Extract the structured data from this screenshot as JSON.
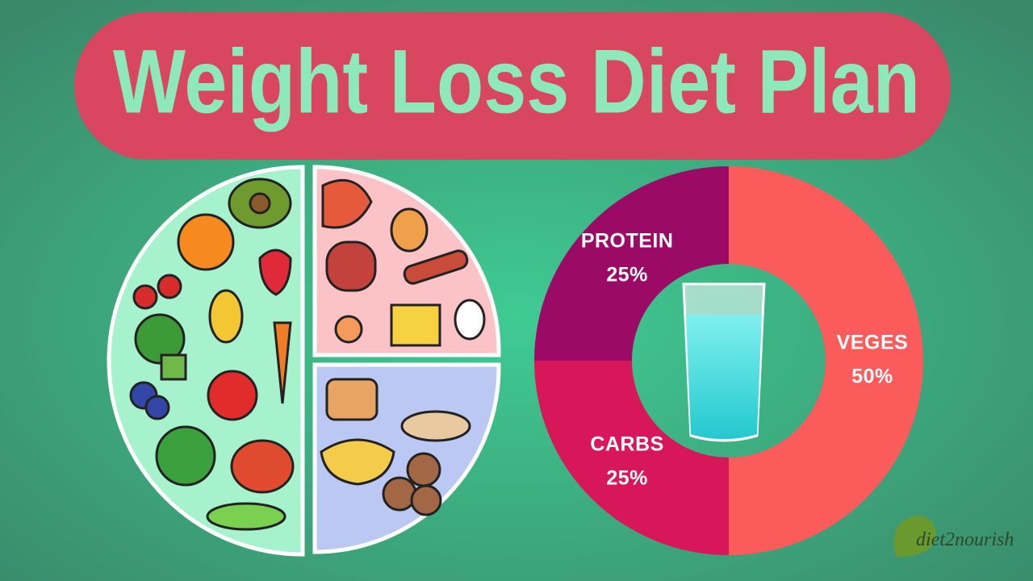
{
  "chart_data": {
    "type": "donut",
    "title": "Weight Loss Diet Plan",
    "categories": [
      "VEGES",
      "CARBS",
      "PROTEIN"
    ],
    "values": [
      50,
      25,
      25
    ],
    "value_labels": [
      "50%",
      "25%",
      "25%"
    ],
    "colors": [
      "#fb5b5a",
      "#d8175b",
      "#9b0b66"
    ]
  },
  "logo": {
    "text": "diet2nourish"
  }
}
